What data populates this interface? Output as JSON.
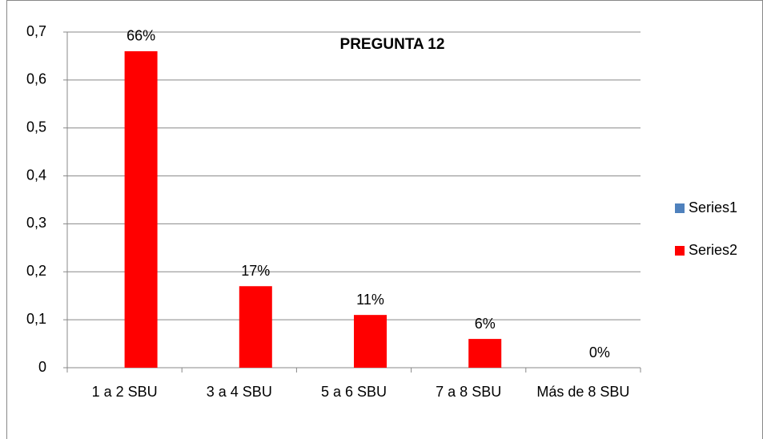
{
  "chart_data": {
    "type": "bar",
    "title": "PREGUNTA 12",
    "categories": [
      "1 a 2 SBU",
      "3 a 4 SBU",
      "5 a 6 SBU",
      "7 a 8 SBU",
      "Más de 8 SBU"
    ],
    "series": [
      {
        "name": "Series1",
        "color": "#4f81bd",
        "values": [
          null,
          null,
          null,
          null,
          null
        ]
      },
      {
        "name": "Series2",
        "color": "#ff0000",
        "values": [
          0.66,
          0.17,
          0.11,
          0.06,
          0
        ],
        "value_labels": [
          "66%",
          "17%",
          "11%",
          "6%",
          "0%"
        ]
      }
    ],
    "ylim": [
      0,
      0.7
    ],
    "yticks": [
      0,
      {
        "value": 0.1,
        "label": "0,1"
      },
      {
        "value": 0.2,
        "label": "0,2"
      },
      {
        "value": 0.3,
        "label": "0,3"
      },
      {
        "value": 0.4,
        "label": "0,4"
      },
      {
        "value": 0.5,
        "label": "0,5"
      },
      {
        "value": 0.6,
        "label": "0,6"
      },
      {
        "value": 0.7,
        "label": "0,7"
      }
    ],
    "grid": true,
    "legend": "right"
  }
}
